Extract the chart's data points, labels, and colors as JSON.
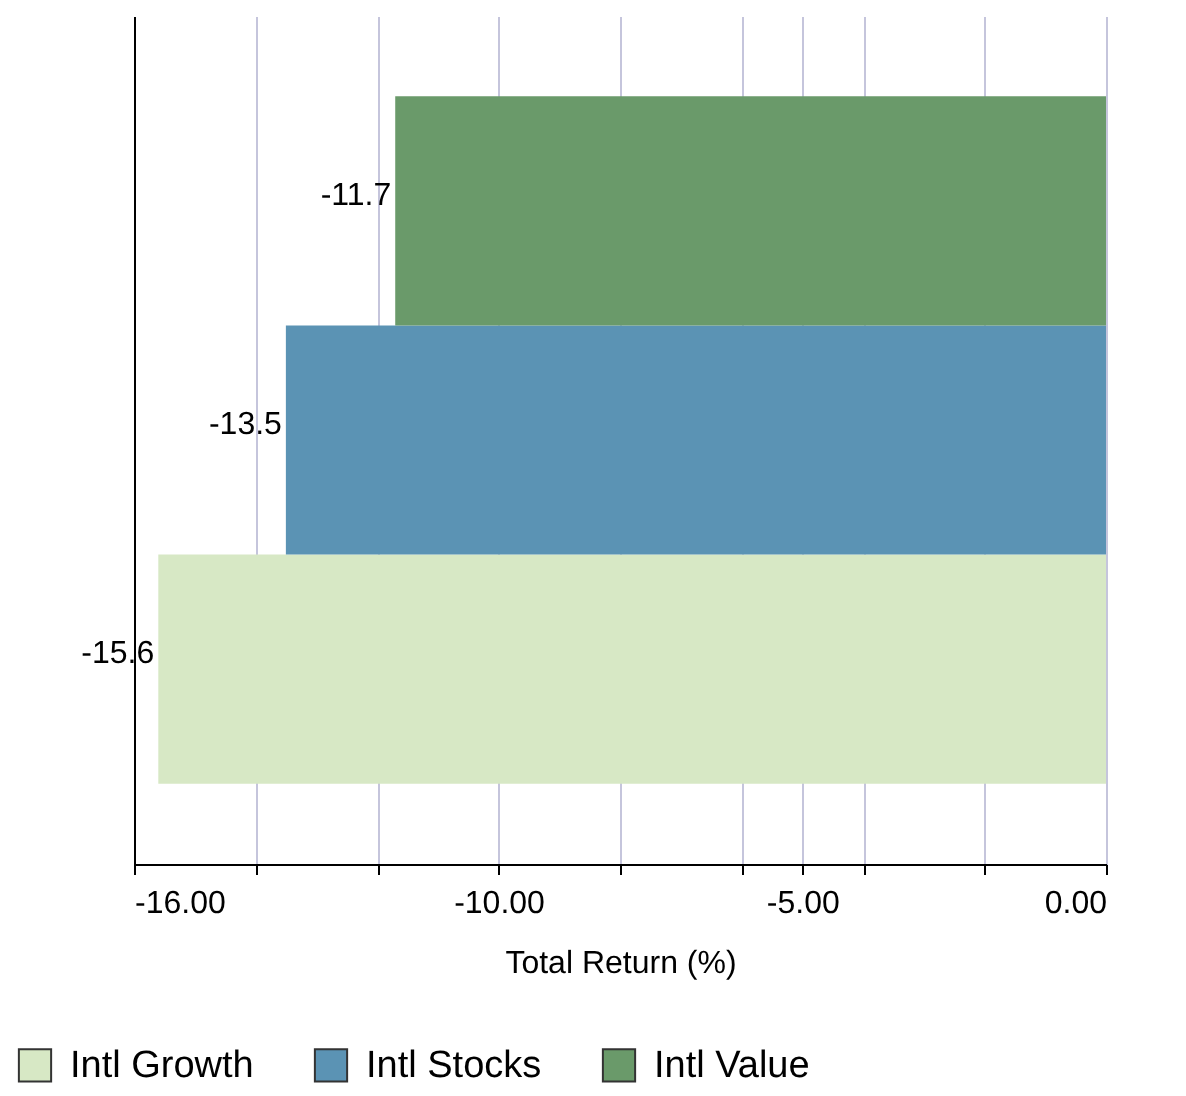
{
  "chart_data": {
    "type": "bar",
    "orientation": "horizontal",
    "categories": [
      null,
      null,
      null
    ],
    "xlabel": "Total Return (%)",
    "series": [
      {
        "name": "Intl Growth",
        "color": "#d7e8c5",
        "values": [
          null,
          null,
          -15.6
        ]
      },
      {
        "name": "Intl Stocks",
        "color": "#5b93b4",
        "values": [
          null,
          -13.5,
          null
        ]
      },
      {
        "name": "Intl Value",
        "color": "#6a9a6a",
        "values": [
          -11.7,
          null,
          null
        ]
      }
    ],
    "xlim": [
      -16,
      0
    ],
    "xticks": [
      {
        "value": -16,
        "label": "-16.00"
      },
      {
        "value": -14,
        "label": null
      },
      {
        "value": -12,
        "label": null
      },
      {
        "value": -10,
        "label": "-10.00"
      },
      {
        "value": -8,
        "label": null
      },
      {
        "value": -6,
        "label": null
      },
      {
        "value": -5,
        "label": "-5.00"
      },
      {
        "value": -4,
        "label": null
      },
      {
        "value": -2,
        "label": null
      },
      {
        "value": 0,
        "label": "0.00"
      }
    ],
    "data_labels": true,
    "grid": "x",
    "legend": "bottom",
    "tick_labels": "x"
  }
}
